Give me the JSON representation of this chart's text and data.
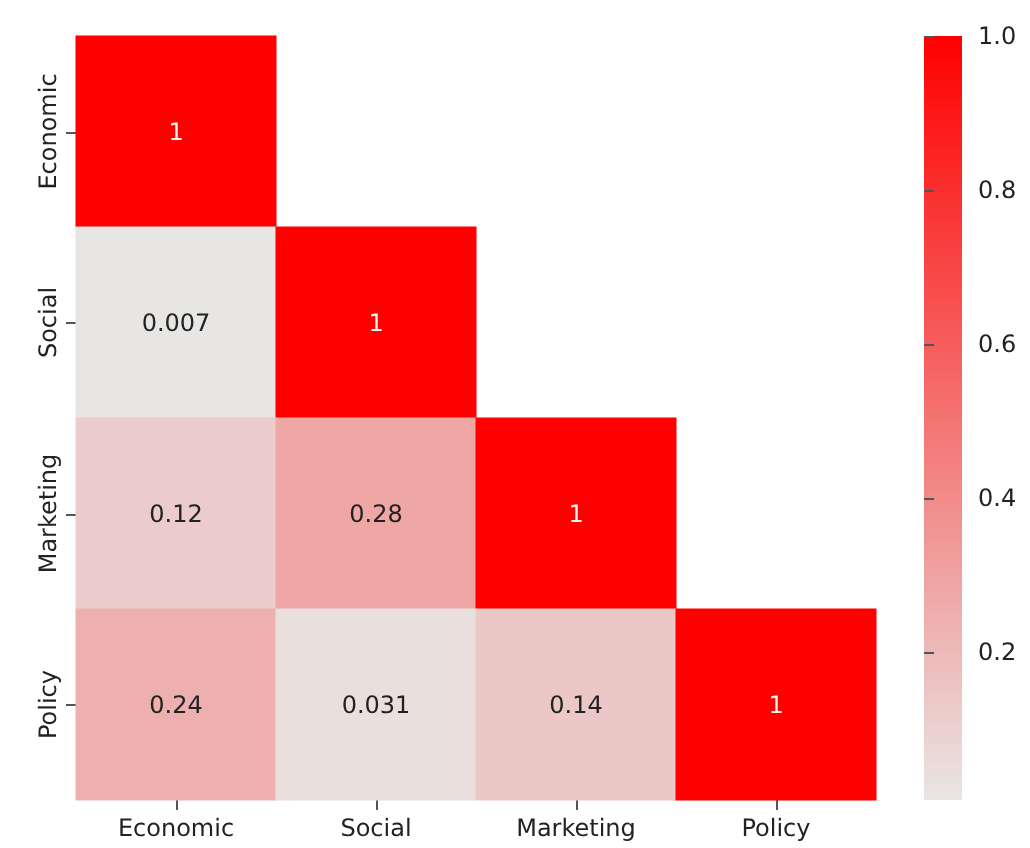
{
  "chart_data": {
    "type": "heatmap",
    "categories": [
      "Economic",
      "Social",
      "Marketing",
      "Policy"
    ],
    "y_categories": [
      "Economic",
      "Social",
      "Marketing",
      "Policy"
    ],
    "cells": [
      [
        1,
        null,
        null,
        null
      ],
      [
        0.007,
        1,
        null,
        null
      ],
      [
        0.12,
        0.28,
        1,
        null
      ],
      [
        0.24,
        0.031,
        0.14,
        1
      ]
    ],
    "clim": [
      0.007,
      1
    ],
    "cticks": [
      0.2,
      0.4,
      0.6,
      0.8,
      {
        "value": 1,
        "label": "1.0"
      }
    ],
    "data_labels": true
  }
}
